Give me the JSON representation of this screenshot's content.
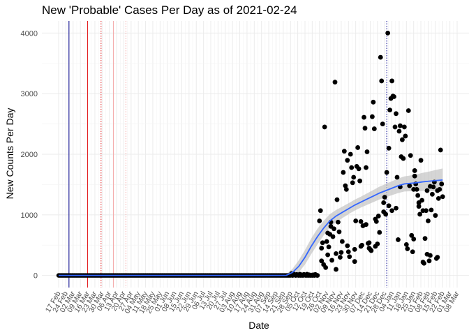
{
  "chart_data": {
    "type": "scatter",
    "title": "New 'Probable' Cases Per Day as of 2021-02-24",
    "xlabel": "Date",
    "ylabel": "New Counts Per Day",
    "ylim": [
      -200,
      4200
    ],
    "y_ticks": [
      0,
      1000,
      2000,
      3000,
      4000
    ],
    "x_day_range": [
      0,
      385
    ],
    "x_ticks": [
      {
        "label": "17 Feb",
        "day": 0
      },
      {
        "label": "24 Feb",
        "day": 7
      },
      {
        "label": "02 Mar",
        "day": 14
      },
      {
        "label": "09 Mar",
        "day": 21
      },
      {
        "label": "16 Mar",
        "day": 28
      },
      {
        "label": "23 Mar",
        "day": 35
      },
      {
        "label": "30 Mar",
        "day": 42
      },
      {
        "label": "06 Apr",
        "day": 49
      },
      {
        "label": "13 Apr",
        "day": 56
      },
      {
        "label": "20 Apr",
        "day": 63
      },
      {
        "label": "27 Apr",
        "day": 70
      },
      {
        "label": "04 May",
        "day": 77
      },
      {
        "label": "11 May",
        "day": 84
      },
      {
        "label": "18 May",
        "day": 91
      },
      {
        "label": "25 May",
        "day": 98
      },
      {
        "label": "01 Jun",
        "day": 105
      },
      {
        "label": "08 Jun",
        "day": 112
      },
      {
        "label": "15 Jun",
        "day": 119
      },
      {
        "label": "22 Jun",
        "day": 126
      },
      {
        "label": "29 Jun",
        "day": 133
      },
      {
        "label": "06 Jul",
        "day": 140
      },
      {
        "label": "13 Jul",
        "day": 147
      },
      {
        "label": "20 Jul",
        "day": 154
      },
      {
        "label": "27 Jul",
        "day": 161
      },
      {
        "label": "03 Aug",
        "day": 168
      },
      {
        "label": "10 Aug",
        "day": 175
      },
      {
        "label": "17 Aug",
        "day": 182
      },
      {
        "label": "24 Aug",
        "day": 189
      },
      {
        "label": "31 Aug",
        "day": 196
      },
      {
        "label": "07 Sep",
        "day": 203
      },
      {
        "label": "14 Sep",
        "day": 210
      },
      {
        "label": "21 Sep",
        "day": 217
      },
      {
        "label": "28 Sep",
        "day": 224
      },
      {
        "label": "05 Oct",
        "day": 231
      },
      {
        "label": "12 Oct",
        "day": 238
      },
      {
        "label": "19 Oct",
        "day": 245
      },
      {
        "label": "26 Oct",
        "day": 252
      },
      {
        "label": "02 Nov",
        "day": 259
      },
      {
        "label": "09 Nov",
        "day": 266
      },
      {
        "label": "16 Nov",
        "day": 273
      },
      {
        "label": "23 Nov",
        "day": 280
      },
      {
        "label": "30 Nov",
        "day": 287
      },
      {
        "label": "07 Dec",
        "day": 294
      },
      {
        "label": "14 Dec",
        "day": 301
      },
      {
        "label": "21 Dec",
        "day": 308
      },
      {
        "label": "28 Dec",
        "day": 315
      },
      {
        "label": "04 Jan",
        "day": 322
      },
      {
        "label": "11 Jan",
        "day": 329
      },
      {
        "label": "18 Jan",
        "day": 336
      },
      {
        "label": "25 Jan",
        "day": 343
      },
      {
        "label": "01 Feb",
        "day": 350
      },
      {
        "label": "08 Feb",
        "day": 357
      },
      {
        "label": "15 Feb",
        "day": 364
      },
      {
        "label": "22 Feb",
        "day": 371
      },
      {
        "label": "01 Mar",
        "day": 378
      },
      {
        "label": "08 Mar",
        "day": 385
      }
    ],
    "reference_lines": [
      {
        "day": 10,
        "style": "solid",
        "color": "#00008b"
      },
      {
        "day": 28,
        "style": "solid",
        "color": "#e31a1c"
      },
      {
        "day": 41,
        "style": "dotted",
        "color": "#e31a1c"
      },
      {
        "day": 53,
        "style": "solid",
        "color": "#f4a6a6"
      },
      {
        "day": 65,
        "style": "dotted",
        "color": "#f4a6a6"
      },
      {
        "day": 317,
        "style": "dotted",
        "color": "#00008b"
      }
    ],
    "zero_series": {
      "from_day": 0,
      "to_day": 224,
      "value": 0
    },
    "points": [
      [
        225,
        30
      ],
      [
        226,
        0
      ],
      [
        227,
        25
      ],
      [
        228,
        10
      ],
      [
        229,
        0
      ],
      [
        230,
        15
      ],
      [
        231,
        5
      ],
      [
        232,
        0
      ],
      [
        233,
        20
      ],
      [
        234,
        0
      ],
      [
        235,
        10
      ],
      [
        236,
        0
      ],
      [
        237,
        15
      ],
      [
        238,
        5
      ],
      [
        239,
        0
      ],
      [
        240,
        20
      ],
      [
        241,
        0
      ],
      [
        242,
        10
      ],
      [
        243,
        0
      ],
      [
        244,
        5
      ],
      [
        245,
        0
      ],
      [
        246,
        10
      ],
      [
        247,
        0
      ],
      [
        248,
        15
      ],
      [
        249,
        5
      ],
      [
        250,
        0
      ],
      [
        252,
        900
      ],
      [
        253,
        1070
      ],
      [
        254,
        450
      ],
      [
        255,
        540
      ],
      [
        256,
        180
      ],
      [
        257,
        2450
      ],
      [
        258,
        130
      ],
      [
        259,
        560
      ],
      [
        260,
        700
      ],
      [
        261,
        470
      ],
      [
        262,
        680
      ],
      [
        263,
        810
      ],
      [
        264,
        250
      ],
      [
        265,
        640
      ],
      [
        266,
        770
      ],
      [
        267,
        3190
      ],
      [
        268,
        100
      ],
      [
        269,
        1250
      ],
      [
        270,
        880
      ],
      [
        271,
        720
      ],
      [
        272,
        300
      ],
      [
        273,
        380
      ],
      [
        274,
        560
      ],
      [
        275,
        1700
      ],
      [
        276,
        2050
      ],
      [
        277,
        1480
      ],
      [
        278,
        1420
      ],
      [
        279,
        1900
      ],
      [
        280,
        390
      ],
      [
        281,
        310
      ],
      [
        282,
        2000
      ],
      [
        283,
        1780
      ],
      [
        284,
        1530
      ],
      [
        285,
        1620
      ],
      [
        286,
        230
      ],
      [
        287,
        900
      ],
      [
        288,
        1800
      ],
      [
        289,
        2110
      ],
      [
        290,
        1760
      ],
      [
        291,
        1560
      ],
      [
        292,
        480
      ],
      [
        293,
        500
      ],
      [
        294,
        820
      ],
      [
        295,
        2610
      ],
      [
        296,
        2430
      ],
      [
        297,
        1780
      ],
      [
        298,
        2040
      ],
      [
        299,
        530
      ],
      [
        300,
        450
      ],
      [
        301,
        430
      ],
      [
        302,
        410
      ],
      [
        303,
        2620
      ],
      [
        304,
        2860
      ],
      [
        305,
        2420
      ],
      [
        306,
        930
      ],
      [
        307,
        890
      ],
      [
        308,
        520
      ],
      [
        309,
        980
      ],
      [
        310,
        710
      ],
      [
        311,
        3600
      ],
      [
        312,
        3210
      ],
      [
        313,
        2500
      ],
      [
        314,
        1200
      ],
      [
        315,
        1290
      ],
      [
        316,
        1010
      ],
      [
        317,
        1700
      ],
      [
        318,
        4000
      ],
      [
        319,
        2100
      ],
      [
        320,
        2730
      ],
      [
        321,
        2920
      ],
      [
        322,
        3210
      ],
      [
        323,
        2960
      ],
      [
        324,
        2950
      ],
      [
        325,
        2450
      ],
      [
        326,
        2670
      ],
      [
        327,
        1620
      ],
      [
        328,
        590
      ],
      [
        329,
        2380
      ],
      [
        330,
        2470
      ],
      [
        331,
        1960
      ],
      [
        332,
        2240
      ],
      [
        333,
        1930
      ],
      [
        334,
        2450
      ],
      [
        335,
        2300
      ],
      [
        336,
        510
      ],
      [
        337,
        440
      ],
      [
        338,
        2720
      ],
      [
        339,
        1480
      ],
      [
        340,
        1980
      ],
      [
        341,
        660
      ],
      [
        342,
        390
      ],
      [
        343,
        1420
      ],
      [
        344,
        1730
      ],
      [
        345,
        1510
      ],
      [
        346,
        1420
      ],
      [
        347,
        1320
      ],
      [
        348,
        1140
      ],
      [
        349,
        1010
      ],
      [
        350,
        1900
      ],
      [
        351,
        1240
      ],
      [
        352,
        1070
      ],
      [
        353,
        200
      ],
      [
        354,
        610
      ],
      [
        355,
        1070
      ],
      [
        356,
        1400
      ],
      [
        357,
        900
      ],
      [
        358,
        240
      ],
      [
        359,
        1470
      ],
      [
        360,
        1080
      ],
      [
        361,
        1340
      ],
      [
        362,
        1460
      ],
      [
        363,
        1540
      ],
      [
        364,
        990
      ],
      [
        365,
        280
      ],
      [
        366,
        300
      ],
      [
        367,
        1270
      ],
      [
        368,
        1420
      ],
      [
        369,
        2070
      ],
      [
        370,
        1510
      ],
      [
        371,
        1300
      ],
      [
        330,
        1460
      ],
      [
        326,
        1110
      ],
      [
        319,
        1150
      ],
      [
        322,
        1070
      ],
      [
        314,
        1050
      ],
      [
        306,
        480
      ],
      [
        300,
        540
      ],
      [
        292,
        890
      ],
      [
        286,
        430
      ],
      [
        279,
        490
      ],
      [
        268,
        360
      ],
      [
        260,
        340
      ],
      [
        254,
        240
      ],
      [
        263,
        880
      ],
      [
        297,
        840
      ],
      [
        343,
        600
      ],
      [
        348,
        1200
      ],
      [
        356,
        350
      ],
      [
        352,
        220
      ],
      [
        366,
        1400
      ],
      [
        359,
        330
      ],
      [
        344,
        1640
      ]
    ],
    "smooth": {
      "color": "#3366ff",
      "band_color": "#bfbfbf",
      "line": [
        [
          0,
          0
        ],
        [
          100,
          0
        ],
        [
          200,
          0
        ],
        [
          220,
          2
        ],
        [
          226,
          50
        ],
        [
          232,
          150
        ],
        [
          238,
          300
        ],
        [
          244,
          480
        ],
        [
          250,
          640
        ],
        [
          256,
          780
        ],
        [
          262,
          900
        ],
        [
          268,
          980
        ],
        [
          274,
          1040
        ],
        [
          280,
          1100
        ],
        [
          286,
          1160
        ],
        [
          292,
          1210
        ],
        [
          298,
          1260
        ],
        [
          304,
          1310
        ],
        [
          310,
          1360
        ],
        [
          316,
          1400
        ],
        [
          322,
          1440
        ],
        [
          328,
          1480
        ],
        [
          334,
          1510
        ],
        [
          340,
          1520
        ],
        [
          346,
          1530
        ],
        [
          352,
          1545
        ],
        [
          358,
          1555
        ],
        [
          364,
          1565
        ],
        [
          371,
          1575
        ]
      ],
      "band_half_width": [
        [
          0,
          15
        ],
        [
          100,
          15
        ],
        [
          200,
          15
        ],
        [
          220,
          20
        ],
        [
          226,
          60
        ],
        [
          232,
          100
        ],
        [
          238,
          120
        ],
        [
          244,
          130
        ],
        [
          250,
          130
        ],
        [
          256,
          120
        ],
        [
          262,
          110
        ],
        [
          268,
          100
        ],
        [
          274,
          95
        ],
        [
          280,
          90
        ],
        [
          286,
          90
        ],
        [
          292,
          90
        ],
        [
          298,
          95
        ],
        [
          304,
          100
        ],
        [
          310,
          105
        ],
        [
          316,
          110
        ],
        [
          322,
          115
        ],
        [
          328,
          120
        ],
        [
          334,
          125
        ],
        [
          340,
          130
        ],
        [
          346,
          140
        ],
        [
          352,
          150
        ],
        [
          358,
          160
        ],
        [
          364,
          175
        ],
        [
          371,
          190
        ]
      ]
    }
  }
}
